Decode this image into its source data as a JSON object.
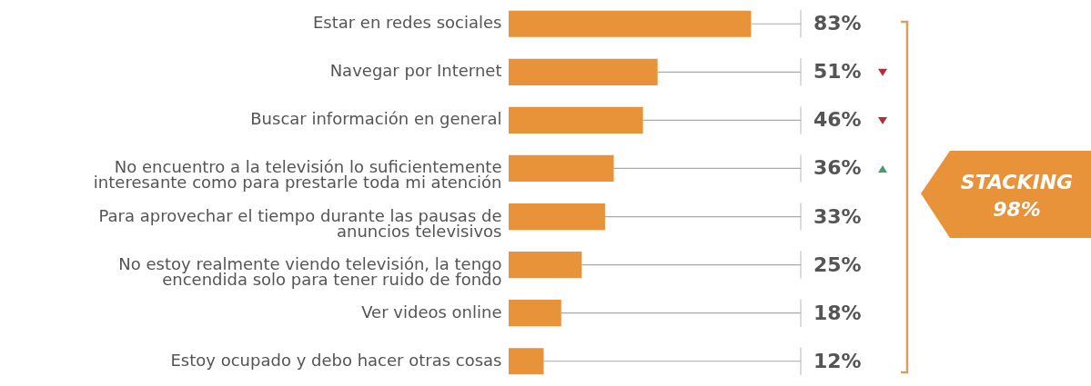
{
  "chart_data": {
    "type": "bar",
    "orientation": "horizontal",
    "categories": [
      "Estar en redes sociales",
      "Navegar por Internet",
      "Buscar información en general",
      "No encuentro a la televisión lo suficientemente\ninteresante como para prestarle toda mi atención",
      "Para aprovechar el tiempo durante las pausas de\nanuncios televisivos",
      "No estoy realmente viendo televisión, la tengo\nencendida solo para tener ruido de fondo",
      "Ver videos online",
      "Estoy ocupado y debo hacer otras cosas"
    ],
    "values": [
      83,
      51,
      46,
      36,
      33,
      25,
      18,
      12
    ],
    "value_labels": [
      "83%",
      "51%",
      "46%",
      "36%",
      "33%",
      "25%",
      "18%",
      "12%"
    ],
    "color": "#e8923a",
    "xlim": [
      0,
      100
    ],
    "annotations": [
      "STACKING 98%"
    ]
  }
}
